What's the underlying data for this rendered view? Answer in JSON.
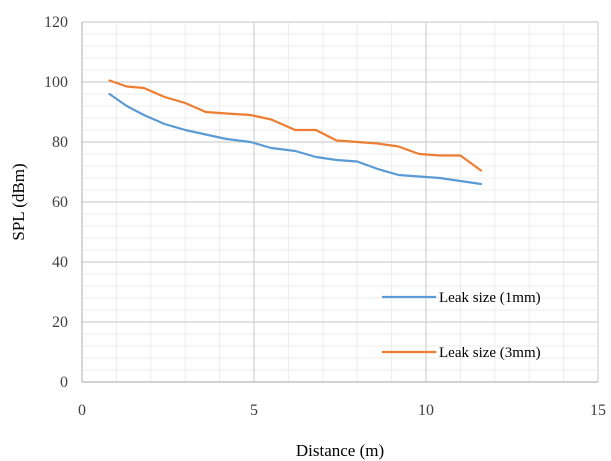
{
  "chart_data": {
    "type": "line",
    "title": "",
    "xlabel": "Distance (m)",
    "ylabel": "SPL (dBm)",
    "xlim": [
      0,
      15
    ],
    "ylim": [
      0,
      120
    ],
    "x_ticks": [
      0,
      5,
      10,
      15
    ],
    "y_ticks": [
      0,
      20,
      40,
      60,
      80,
      100,
      120
    ],
    "x_tick_labels": [
      "0",
      "5",
      "10",
      "15"
    ],
    "y_tick_labels": [
      "0",
      "20",
      "40",
      "60",
      "80",
      "100",
      "120"
    ],
    "grid": {
      "major": true,
      "minor": true
    },
    "legend_position": "bottom-right",
    "series": [
      {
        "name": "Leak size (1mm)",
        "color": "#5b9bd5",
        "x": [
          0.8,
          1.3,
          1.8,
          2.4,
          3.0,
          3.6,
          4.2,
          4.9,
          5.5,
          6.2,
          6.8,
          7.4,
          8.0,
          8.6,
          9.2,
          9.8,
          10.4,
          11.0,
          11.6
        ],
        "y": [
          96,
          92,
          89,
          86,
          84,
          82.5,
          81,
          80,
          78,
          77,
          75,
          74,
          73.5,
          71,
          69,
          68.5,
          68,
          67,
          66
        ]
      },
      {
        "name": "Leak size (3mm)",
        "color": "#ed7d31",
        "x": [
          0.8,
          1.3,
          1.8,
          2.4,
          3.0,
          3.6,
          4.2,
          4.9,
          5.5,
          6.2,
          6.8,
          7.4,
          8.0,
          8.6,
          9.2,
          9.8,
          10.4,
          11.0,
          11.6
        ],
        "y": [
          100.5,
          98.5,
          98,
          95,
          93,
          90,
          89.5,
          89,
          87.5,
          84,
          84,
          80.5,
          80,
          79.5,
          78.5,
          76,
          75.5,
          75.5,
          70.5
        ]
      }
    ]
  }
}
